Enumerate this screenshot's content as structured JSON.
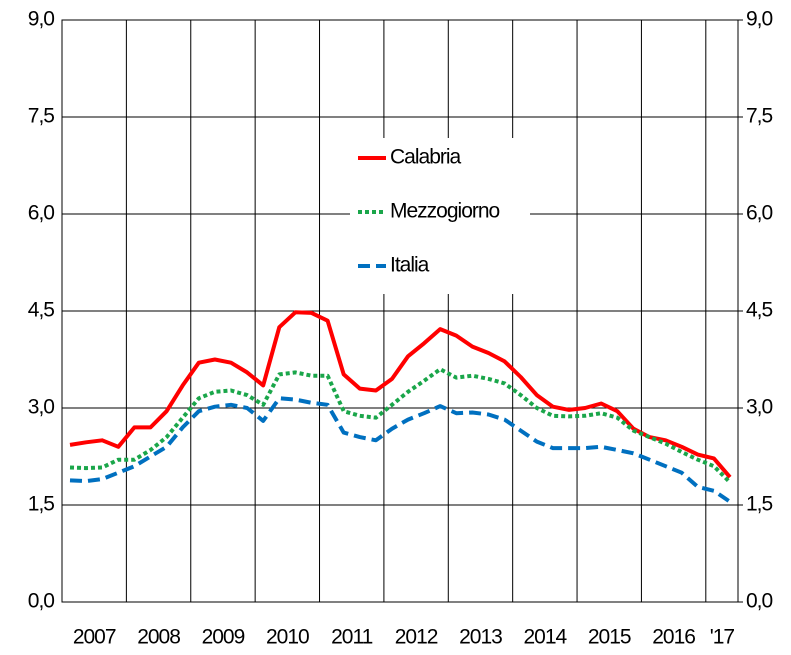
{
  "chart_data": {
    "type": "line",
    "categories": [
      "2007",
      null,
      null,
      null,
      "2008",
      null,
      null,
      null,
      "2009",
      null,
      null,
      null,
      "2010",
      null,
      null,
      null,
      "2011",
      null,
      null,
      null,
      "2012",
      null,
      null,
      null,
      "2013",
      null,
      null,
      null,
      "2014",
      null,
      null,
      null,
      "2015",
      null,
      null,
      null,
      "2016",
      null,
      null,
      null,
      "'17",
      null
    ],
    "series": [
      {
        "name": "Calabria",
        "color": "#ff0000",
        "dash": "solid",
        "values": [
          2.43,
          2.47,
          2.5,
          2.4,
          2.7,
          2.7,
          2.95,
          3.35,
          3.7,
          3.75,
          3.7,
          3.55,
          3.35,
          4.25,
          4.48,
          4.47,
          4.35,
          3.52,
          3.3,
          3.27,
          3.45,
          3.8,
          4.0,
          4.22,
          4.12,
          3.95,
          3.85,
          3.72,
          3.48,
          3.2,
          3.02,
          2.97,
          3.0,
          3.07,
          2.95,
          2.68,
          2.55,
          2.5,
          2.4,
          2.28,
          2.22,
          1.93
        ]
      },
      {
        "name": "Mezzogiorno",
        "color": "#1aa64a",
        "dash": "dotted",
        "values": [
          2.08,
          2.07,
          2.08,
          2.2,
          2.2,
          2.35,
          2.55,
          2.85,
          3.15,
          3.25,
          3.27,
          3.2,
          3.05,
          3.52,
          3.55,
          3.5,
          3.5,
          2.95,
          2.88,
          2.85,
          3.05,
          3.25,
          3.42,
          3.6,
          3.47,
          3.5,
          3.45,
          3.38,
          3.2,
          3.0,
          2.88,
          2.87,
          2.88,
          2.92,
          2.85,
          2.65,
          2.55,
          2.45,
          2.32,
          2.2,
          2.1,
          1.85
        ]
      },
      {
        "name": "Italia",
        "color": "#0070c0",
        "dash": "dashed",
        "values": [
          1.88,
          1.87,
          1.9,
          2.0,
          2.1,
          2.25,
          2.4,
          2.7,
          2.95,
          3.02,
          3.05,
          3.0,
          2.8,
          3.15,
          3.13,
          3.08,
          3.05,
          2.62,
          2.55,
          2.5,
          2.68,
          2.82,
          2.92,
          3.03,
          2.92,
          2.93,
          2.9,
          2.82,
          2.65,
          2.48,
          2.38,
          2.38,
          2.38,
          2.4,
          2.35,
          2.3,
          2.2,
          2.1,
          2.0,
          1.78,
          1.72,
          1.55
        ]
      }
    ],
    "ylim": [
      0,
      9
    ],
    "yticks": [
      {
        "value": 0,
        "label": "0,0"
      },
      {
        "value": 1.5,
        "label": "1,5"
      },
      {
        "value": 3,
        "label": "3,0"
      },
      {
        "value": 4.5,
        "label": "4,5"
      },
      {
        "value": 6,
        "label": "6,0"
      },
      {
        "value": 7.5,
        "label": "7,5"
      },
      {
        "value": 9,
        "label": "9,0"
      }
    ],
    "y2lim": [
      0,
      9
    ],
    "y2ticks": [
      {
        "value": 0,
        "label": "0,0"
      },
      {
        "value": 1.5,
        "label": "1,5"
      },
      {
        "value": 3,
        "label": "3,0"
      },
      {
        "value": 4.5,
        "label": "4,5"
      },
      {
        "value": 6,
        "label": "6,0"
      },
      {
        "value": 7.5,
        "label": "7,5"
      },
      {
        "value": 9,
        "label": "9,0"
      }
    ],
    "grid": true,
    "legend": "center"
  }
}
